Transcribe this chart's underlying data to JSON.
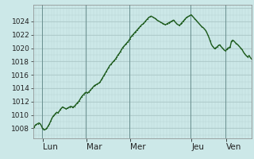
{
  "background_color": "#cce8e8",
  "plot_bg_color": "#cce8e8",
  "grid_color_minor": "#b8d4d4",
  "grid_color_major": "#a8c4c4",
  "day_sep_color": "#6a9090",
  "line_color": "#1e5c1e",
  "line_width": 1.0,
  "marker": ".",
  "marker_size": 1.8,
  "ylim": [
    1006.5,
    1026.5
  ],
  "yticks": [
    1008,
    1010,
    1012,
    1014,
    1016,
    1018,
    1020,
    1022,
    1024
  ],
  "ylabel_fontsize": 6.5,
  "xlabel_fontsize": 7.5,
  "day_labels": [
    "Lun",
    "Mar",
    "Mer",
    "Jeu",
    "Ven"
  ],
  "num_vgrid": 72,
  "pressure_data": [
    1008.0,
    1008.2,
    1008.5,
    1008.6,
    1008.7,
    1008.8,
    1008.7,
    1008.4,
    1008.0,
    1007.8,
    1007.8,
    1007.9,
    1008.1,
    1008.4,
    1008.7,
    1009.1,
    1009.5,
    1009.8,
    1010.0,
    1010.2,
    1010.4,
    1010.3,
    1010.5,
    1010.8,
    1011.0,
    1011.2,
    1011.1,
    1011.0,
    1010.9,
    1011.0,
    1011.1,
    1011.2,
    1011.3,
    1011.2,
    1011.2,
    1011.3,
    1011.5,
    1011.7,
    1011.9,
    1012.1,
    1012.4,
    1012.7,
    1012.9,
    1013.1,
    1013.3,
    1013.4,
    1013.3,
    1013.4,
    1013.6,
    1013.8,
    1014.0,
    1014.2,
    1014.4,
    1014.5,
    1014.6,
    1014.7,
    1014.8,
    1015.0,
    1015.3,
    1015.6,
    1015.9,
    1016.2,
    1016.5,
    1016.8,
    1017.1,
    1017.4,
    1017.6,
    1017.8,
    1018.0,
    1018.2,
    1018.4,
    1018.7,
    1019.0,
    1019.2,
    1019.5,
    1019.8,
    1020.1,
    1020.3,
    1020.5,
    1020.7,
    1020.9,
    1021.1,
    1021.4,
    1021.7,
    1021.9,
    1022.1,
    1022.3,
    1022.5,
    1022.7,
    1022.9,
    1023.1,
    1023.3,
    1023.5,
    1023.6,
    1023.8,
    1024.0,
    1024.2,
    1024.4,
    1024.6,
    1024.7,
    1024.8,
    1024.7,
    1024.6,
    1024.5,
    1024.4,
    1024.2,
    1024.1,
    1024.0,
    1023.9,
    1023.8,
    1023.7,
    1023.6,
    1023.5,
    1023.6,
    1023.7,
    1023.8,
    1023.9,
    1024.0,
    1024.1,
    1024.2,
    1024.0,
    1023.8,
    1023.6,
    1023.5,
    1023.4,
    1023.6,
    1023.8,
    1024.0,
    1024.2,
    1024.4,
    1024.6,
    1024.7,
    1024.8,
    1024.9,
    1025.0,
    1024.8,
    1024.6,
    1024.4,
    1024.2,
    1024.0,
    1023.8,
    1023.6,
    1023.4,
    1023.2,
    1023.1,
    1022.9,
    1022.7,
    1022.4,
    1022.0,
    1021.6,
    1021.1,
    1020.6,
    1020.3,
    1020.1,
    1019.9,
    1020.1,
    1020.2,
    1020.4,
    1020.5,
    1020.3,
    1020.1,
    1019.9,
    1019.7,
    1019.6,
    1019.8,
    1020.0,
    1020.1,
    1020.2,
    1021.0,
    1021.2,
    1021.1,
    1020.9,
    1020.7,
    1020.6,
    1020.4,
    1020.2,
    1020.0,
    1019.8,
    1019.5,
    1019.2,
    1019.0,
    1018.8,
    1018.7,
    1018.9,
    1018.6,
    1018.4
  ]
}
